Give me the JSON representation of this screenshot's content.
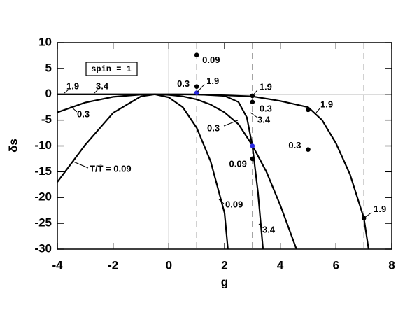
{
  "chart_data": {
    "type": "line",
    "xlabel": "g",
    "ylabel": "δs",
    "box_text": "spin = 1",
    "xlim": [
      -4,
      8
    ],
    "ylim": [
      -30,
      10
    ],
    "xticks": [
      -4,
      -2,
      0,
      2,
      4,
      6,
      8
    ],
    "yticks": [
      -30,
      -25,
      -20,
      -15,
      -10,
      -5,
      0,
      5,
      10
    ],
    "vlines": [
      1,
      3,
      5,
      7
    ],
    "series": [
      {
        "color": "#000000",
        "labels": [
          "T/T̃ = 0.09",
          "0.09"
        ],
        "x": [
          -4,
          -3,
          -2,
          -1,
          -0.5,
          0,
          0.5,
          1,
          1.5,
          2,
          2.12
        ],
        "values": [
          -17,
          -9.8,
          -3.6,
          -0.4,
          0,
          -0.6,
          -2.5,
          -6.5,
          -13,
          -23,
          -30
        ]
      },
      {
        "color": "#000000",
        "labels": [
          "0.3",
          "0.3"
        ],
        "x": [
          -4,
          -3,
          -2,
          -1,
          -0.5,
          0,
          0.5,
          1,
          1.5,
          2,
          2.5,
          3,
          3.5,
          4,
          4.58
        ],
        "values": [
          -3.5,
          -1.6,
          -0.5,
          -0.05,
          0,
          -0.1,
          -0.4,
          -1,
          -2,
          -3.5,
          -5.8,
          -9.9,
          -15,
          -21.5,
          -30
        ]
      },
      {
        "color": "#000000",
        "labels": [
          "1.9",
          "1.9"
        ],
        "x": [
          -4,
          -2,
          0,
          1,
          2,
          3,
          4,
          5,
          5.5,
          6,
          6.5,
          7,
          7.17
        ],
        "values": [
          0,
          0,
          0,
          -0.05,
          -0.2,
          -0.4,
          -1.3,
          -2.5,
          -5,
          -9.5,
          -15.5,
          -24,
          -30
        ]
      },
      {
        "color": "#000000",
        "labels": [
          "3.4",
          "3.4",
          "3.4"
        ],
        "x": [
          -4,
          -2,
          0,
          1,
          2,
          2.5,
          2.8,
          3,
          3.2,
          3.38
        ],
        "values": [
          0,
          0,
          0,
          0,
          -0.3,
          -1.5,
          -4.5,
          -10,
          -19,
          -30
        ]
      }
    ],
    "points": {
      "x": [
        1,
        1,
        1,
        3,
        3,
        3,
        3,
        5,
        5,
        7
      ],
      "values": [
        7.6,
        1.5,
        0.3,
        -0.3,
        -1.5,
        -10,
        -12.5,
        -3,
        -10.7,
        -24
      ],
      "colors": [
        "#000000",
        "#000000",
        "#2a2ae0",
        "#000000",
        "#000000",
        "#2a2ae0",
        "#000000",
        "#000000",
        "#000000",
        "#000000"
      ],
      "labels": [
        "0.09",
        "0.3",
        "1.9",
        "1.9",
        "0.3",
        null,
        "0.09",
        null,
        "0.3",
        "1.9"
      ]
    }
  }
}
